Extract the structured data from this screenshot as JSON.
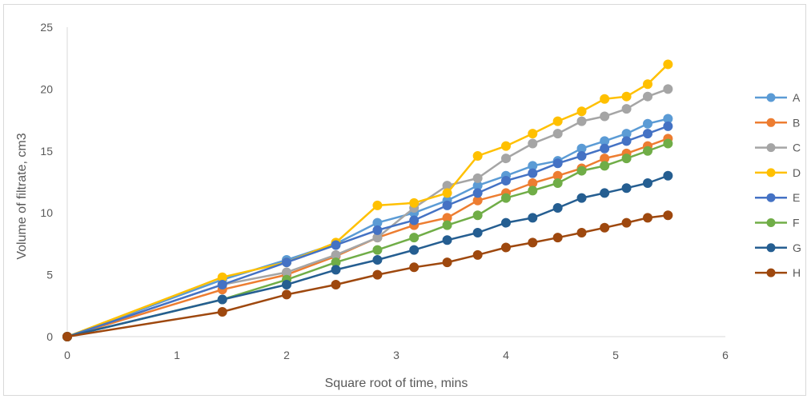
{
  "chart_data": {
    "type": "line",
    "title": "",
    "xlabel": "Square root of time, mins",
    "ylabel": "Volume of filtrate, cm3",
    "xlim": [
      0,
      6
    ],
    "ylim": [
      0,
      25
    ],
    "xticks": [
      0,
      1,
      2,
      3,
      4,
      5,
      6
    ],
    "yticks": [
      0,
      5,
      10,
      15,
      20,
      25
    ],
    "grid": "horizontal-only-none",
    "legend_position": "right",
    "x": [
      0,
      1.414,
      2.0,
      2.449,
      2.828,
      3.162,
      3.464,
      3.742,
      4.0,
      4.243,
      4.472,
      4.69,
      4.899,
      5.099,
      5.292,
      5.477
    ],
    "series": [
      {
        "name": "A",
        "color": "#5B9BD5",
        "values": [
          0,
          4.6,
          6.2,
          7.5,
          9.2,
          10.0,
          11.0,
          12.2,
          13.0,
          13.8,
          14.2,
          15.2,
          15.8,
          16.4,
          17.2,
          17.6
        ]
      },
      {
        "name": "B",
        "color": "#ED7D31",
        "values": [
          0,
          3.8,
          5.0,
          6.5,
          8.0,
          9.0,
          9.6,
          11.0,
          11.6,
          12.4,
          13.0,
          13.6,
          14.4,
          14.8,
          15.4,
          16.0
        ]
      },
      {
        "name": "C",
        "color": "#A5A5A5",
        "values": [
          0,
          4.2,
          5.2,
          6.6,
          8.0,
          10.4,
          12.2,
          12.8,
          14.4,
          15.6,
          16.4,
          17.4,
          17.8,
          18.4,
          19.4,
          20.0
        ]
      },
      {
        "name": "D",
        "color": "#FFC000",
        "values": [
          0,
          4.8,
          6.0,
          7.6,
          10.6,
          10.8,
          11.6,
          14.6,
          15.4,
          16.4,
          17.4,
          18.2,
          19.2,
          19.4,
          20.4,
          22.0
        ]
      },
      {
        "name": "E",
        "color": "#4472C4",
        "values": [
          0,
          4.2,
          6.0,
          7.4,
          8.6,
          9.4,
          10.6,
          11.6,
          12.6,
          13.2,
          14.0,
          14.6,
          15.2,
          15.8,
          16.4,
          17.0
        ]
      },
      {
        "name": "F",
        "color": "#70AD47",
        "values": [
          0,
          3.0,
          4.6,
          6.0,
          7.0,
          8.0,
          9.0,
          9.8,
          11.2,
          11.8,
          12.4,
          13.4,
          13.8,
          14.4,
          15.0,
          15.6
        ]
      },
      {
        "name": "G",
        "color": "#255E91",
        "values": [
          0,
          3.0,
          4.2,
          5.4,
          6.2,
          7.0,
          7.8,
          8.4,
          9.2,
          9.6,
          10.4,
          11.2,
          11.6,
          12.0,
          12.4,
          13.0
        ]
      },
      {
        "name": "H",
        "color": "#9E480E",
        "values": [
          0,
          2.0,
          3.4,
          4.2,
          5.0,
          5.6,
          6.0,
          6.6,
          7.2,
          7.6,
          8.0,
          8.4,
          8.8,
          9.2,
          9.6,
          9.8
        ]
      }
    ]
  }
}
